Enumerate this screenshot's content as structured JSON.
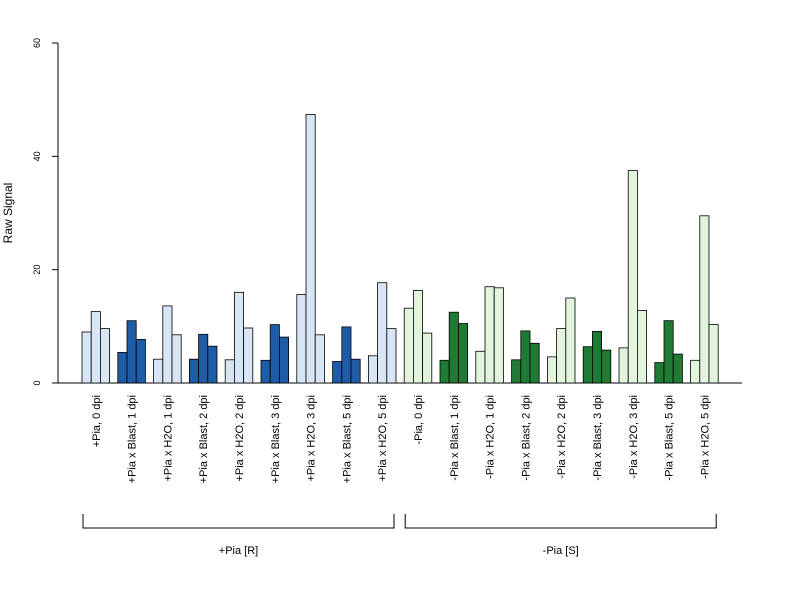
{
  "chart_data": {
    "type": "bar",
    "ylabel": "Raw Signal",
    "ylim": [
      0,
      60
    ],
    "yticks": [
      0,
      20,
      40,
      60
    ],
    "grid": false,
    "legend": "none",
    "bars_per_category": 3,
    "colors": {
      "pia_plus_light": "#d7e5f5",
      "pia_plus_dark": "#1f5ca8",
      "pia_minus_light": "#e3f4dc",
      "pia_minus_dark": "#1f7a33"
    },
    "categories": [
      "+Pia, 0 dpi",
      "+Pia x Blast, 1 dpi",
      "+Pia x H2O, 1 dpi",
      "+Pia x Blast, 2 dpi",
      "+Pia x H2O, 2 dpi",
      "+Pia x Blast, 3 dpi",
      "+Pia x H2O, 3 dpi",
      "+Pia x Blast, 5 dpi",
      "+Pia x H2O, 5 dpi",
      "-Pia, 0 dpi",
      "-Pia x Blast, 1 dpi",
      "-Pia x H2O, 1 dpi",
      "-Pia x Blast, 2 dpi",
      "-Pia x H2O, 2 dpi",
      "-Pia x Blast, 3 dpi",
      "-Pia x H2O, 3 dpi",
      "-Pia x Blast, 5 dpi",
      "-Pia x H2O, 5 dpi"
    ],
    "values": [
      [
        9.0,
        12.6,
        9.6
      ],
      [
        5.4,
        11.0,
        7.7
      ],
      [
        4.2,
        13.6,
        8.5
      ],
      [
        4.2,
        8.6,
        6.5
      ],
      [
        4.1,
        16.0,
        9.7
      ],
      [
        4.0,
        10.3,
        8.1
      ],
      [
        15.6,
        47.4,
        8.5
      ],
      [
        3.8,
        9.9,
        4.2
      ],
      [
        4.8,
        17.7,
        9.6
      ],
      [
        13.2,
        16.3,
        8.8
      ],
      [
        4.0,
        12.5,
        10.5
      ],
      [
        5.6,
        17.0,
        16.8
      ],
      [
        4.1,
        9.2,
        7.0
      ],
      [
        4.6,
        9.6,
        15.0
      ],
      [
        6.4,
        9.1,
        5.8
      ],
      [
        6.2,
        37.5,
        12.8
      ],
      [
        3.6,
        11.0,
        5.1
      ],
      [
        4.0,
        29.5,
        10.3
      ]
    ],
    "category_group": [
      "plus",
      "plus",
      "plus",
      "plus",
      "plus",
      "plus",
      "plus",
      "plus",
      "plus",
      "minus",
      "minus",
      "minus",
      "minus",
      "minus",
      "minus",
      "minus",
      "minus",
      "minus"
    ],
    "category_tone": [
      "light",
      "dark",
      "light",
      "dark",
      "light",
      "dark",
      "light",
      "dark",
      "light",
      "light",
      "dark",
      "light",
      "dark",
      "light",
      "dark",
      "light",
      "dark",
      "light"
    ],
    "groups": [
      {
        "label": "+Pia [R]",
        "from": 0,
        "to": 8
      },
      {
        "label": "-Pia [S]",
        "from": 9,
        "to": 17
      }
    ]
  }
}
